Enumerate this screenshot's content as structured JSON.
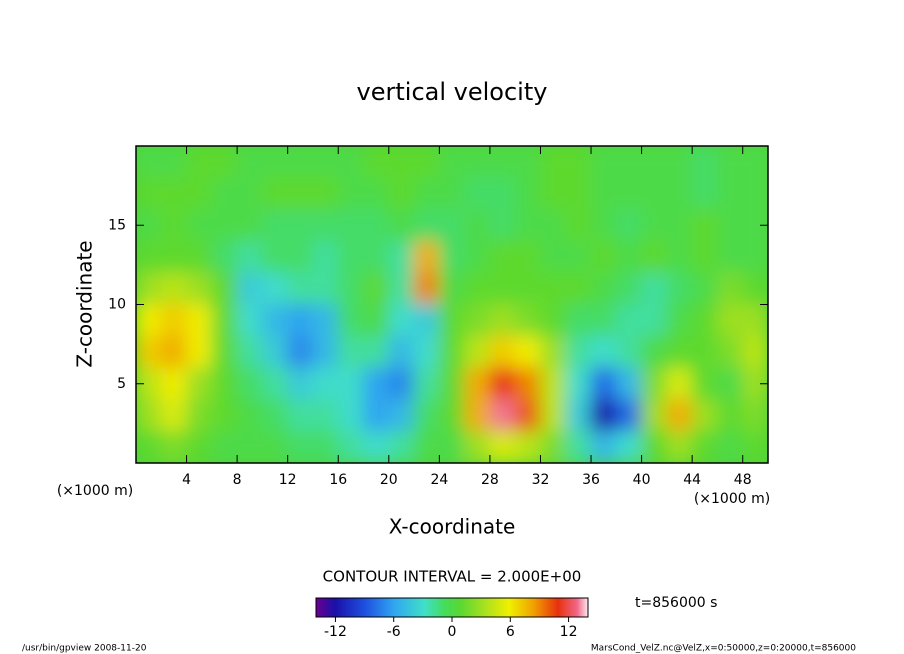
{
  "chart_data": {
    "type": "heatmap",
    "title": "vertical velocity",
    "x_label": "X-coordinate",
    "y_label": "Z-coordinate",
    "x_unit": "(×1000 m)",
    "y_unit": "(×1000 m)",
    "x": [
      1,
      3,
      5,
      7,
      9,
      11,
      13,
      15,
      17,
      19,
      21,
      23,
      25,
      27,
      29,
      31,
      33,
      35,
      37,
      39,
      41,
      43,
      45,
      47,
      49
    ],
    "y": [
      19,
      17,
      15,
      13,
      11,
      9,
      7,
      5,
      3,
      1
    ],
    "values": [
      [
        0,
        0,
        1,
        1,
        0,
        0,
        0,
        0,
        0,
        1,
        1,
        1,
        0,
        0,
        0,
        0,
        1,
        1,
        0,
        0,
        0,
        0,
        -1,
        0,
        0
      ],
      [
        1,
        1,
        1,
        0,
        0,
        1,
        1,
        1,
        0,
        0,
        1,
        0,
        0,
        -1,
        -1,
        0,
        1,
        1,
        0,
        0,
        0,
        0,
        -1,
        0,
        0
      ],
      [
        0,
        1,
        0,
        0,
        0,
        -1,
        -1,
        -1,
        -1,
        -1,
        0,
        -1,
        -1,
        0,
        -1,
        0,
        0,
        1,
        0,
        -1,
        0,
        0,
        1,
        0,
        0
      ],
      [
        1,
        1,
        1,
        -1,
        -2,
        -1,
        -1,
        -2,
        -1,
        -1,
        -2,
        8,
        -1,
        0,
        1,
        1,
        0,
        0,
        1,
        0,
        1,
        0,
        1,
        0,
        0
      ],
      [
        3,
        4,
        3,
        1,
        -4,
        -3,
        -2,
        -2,
        -1,
        1,
        -2,
        9,
        0,
        1,
        1,
        1,
        1,
        1,
        0,
        -1,
        -2,
        -1,
        0,
        2,
        1
      ],
      [
        6,
        7,
        6,
        1,
        -3,
        -5,
        -6,
        -5,
        -1,
        0,
        -3,
        -4,
        1,
        2,
        3,
        2,
        1,
        -1,
        -1,
        -2,
        -2,
        0,
        1,
        3,
        3
      ],
      [
        7,
        8,
        6,
        1,
        -2,
        -4,
        -7,
        -5,
        -2,
        -2,
        -5,
        -3,
        1,
        4,
        7,
        6,
        3,
        -2,
        -3,
        -2,
        0,
        1,
        1,
        2,
        4
      ],
      [
        4,
        6,
        3,
        1,
        -1,
        -2,
        -4,
        -3,
        -3,
        -6,
        -7,
        -2,
        1,
        8,
        11,
        9,
        4,
        -3,
        -8,
        -5,
        2,
        5,
        1,
        0,
        3
      ],
      [
        3,
        5,
        2,
        1,
        0,
        -1,
        -2,
        -2,
        -3,
        -6,
        -5,
        -1,
        1,
        8,
        13,
        10,
        4,
        -4,
        -12,
        -8,
        3,
        8,
        3,
        1,
        2
      ],
      [
        1,
        2,
        1,
        0,
        0,
        0,
        -1,
        -1,
        -2,
        -3,
        -2,
        0,
        0,
        3,
        5,
        4,
        2,
        -2,
        -5,
        -3,
        1,
        3,
        1,
        0,
        1
      ]
    ],
    "xlim": [
      0,
      50
    ],
    "ylim": [
      0,
      20
    ],
    "xticks": [
      4,
      8,
      12,
      16,
      20,
      24,
      28,
      32,
      36,
      40,
      44,
      48
    ],
    "yticks": [
      5,
      10,
      15
    ],
    "colorbar": {
      "lim": [
        -14,
        14
      ],
      "ticks": [
        -12,
        -6,
        0,
        6,
        12
      ]
    },
    "contour_interval": "CONTOUR INTERVAL = 2.000E+00",
    "time_label": "t=856000 s",
    "footer_left": "/usr/bin/gpview  2008-11-20",
    "footer_right": "MarsCond_VelZ.nc@VelZ,x=0:50000,z=0:20000,t=856000"
  }
}
